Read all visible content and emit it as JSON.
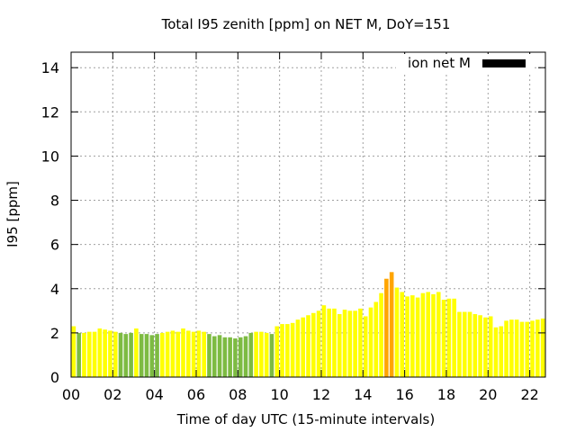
{
  "chart_data": {
    "type": "bar",
    "title": "Total I95 zenith [ppm] on NET M, DoY=151",
    "xlabel": "Time of day UTC (15-minute intervals)",
    "ylabel": "I95 [ppm]",
    "x_unit": "hours UTC",
    "x_interval_hours": 0.25,
    "xlim": [
      0,
      22.75
    ],
    "ylim": [
      0,
      14.7
    ],
    "x_ticks": [
      "00",
      "02",
      "04",
      "06",
      "08",
      "10",
      "12",
      "14",
      "16",
      "18",
      "20",
      "22"
    ],
    "y_ticks": [
      "0",
      "2",
      "4",
      "6",
      "8",
      "10",
      "12",
      "14"
    ],
    "grid": true,
    "legend": {
      "label": "ion net M",
      "color": "#000000",
      "position": "top-right"
    },
    "colors": {
      "yellow": "#ffff00",
      "green": "#7dbb42",
      "orange": "#ffa500"
    },
    "bars": [
      {
        "x": 0.0,
        "value": 2.3,
        "color": "yellow"
      },
      {
        "x": 0.25,
        "value": 2.0,
        "color": "green"
      },
      {
        "x": 0.5,
        "value": 2.0,
        "color": "yellow"
      },
      {
        "x": 0.75,
        "value": 2.05,
        "color": "yellow"
      },
      {
        "x": 1.0,
        "value": 2.05,
        "color": "yellow"
      },
      {
        "x": 1.25,
        "value": 2.2,
        "color": "yellow"
      },
      {
        "x": 1.5,
        "value": 2.15,
        "color": "yellow"
      },
      {
        "x": 1.75,
        "value": 2.1,
        "color": "yellow"
      },
      {
        "x": 2.0,
        "value": 2.05,
        "color": "yellow"
      },
      {
        "x": 2.25,
        "value": 2.0,
        "color": "green"
      },
      {
        "x": 2.5,
        "value": 1.95,
        "color": "green"
      },
      {
        "x": 2.75,
        "value": 2.0,
        "color": "green"
      },
      {
        "x": 3.0,
        "value": 2.2,
        "color": "yellow"
      },
      {
        "x": 3.25,
        "value": 1.95,
        "color": "green"
      },
      {
        "x": 3.5,
        "value": 1.95,
        "color": "green"
      },
      {
        "x": 3.75,
        "value": 1.9,
        "color": "green"
      },
      {
        "x": 4.0,
        "value": 1.95,
        "color": "green"
      },
      {
        "x": 4.25,
        "value": 2.0,
        "color": "yellow"
      },
      {
        "x": 4.5,
        "value": 2.05,
        "color": "yellow"
      },
      {
        "x": 4.75,
        "value": 2.1,
        "color": "yellow"
      },
      {
        "x": 5.0,
        "value": 2.05,
        "color": "yellow"
      },
      {
        "x": 5.25,
        "value": 2.2,
        "color": "yellow"
      },
      {
        "x": 5.5,
        "value": 2.1,
        "color": "yellow"
      },
      {
        "x": 5.75,
        "value": 2.05,
        "color": "yellow"
      },
      {
        "x": 6.0,
        "value": 2.1,
        "color": "yellow"
      },
      {
        "x": 6.25,
        "value": 2.05,
        "color": "yellow"
      },
      {
        "x": 6.5,
        "value": 1.95,
        "color": "green"
      },
      {
        "x": 6.75,
        "value": 1.85,
        "color": "green"
      },
      {
        "x": 7.0,
        "value": 1.9,
        "color": "green"
      },
      {
        "x": 7.25,
        "value": 1.8,
        "color": "green"
      },
      {
        "x": 7.5,
        "value": 1.8,
        "color": "green"
      },
      {
        "x": 7.75,
        "value": 1.75,
        "color": "green"
      },
      {
        "x": 8.0,
        "value": 1.8,
        "color": "green"
      },
      {
        "x": 8.25,
        "value": 1.85,
        "color": "green"
      },
      {
        "x": 8.5,
        "value": 2.0,
        "color": "green"
      },
      {
        "x": 8.75,
        "value": 2.05,
        "color": "yellow"
      },
      {
        "x": 9.0,
        "value": 2.05,
        "color": "yellow"
      },
      {
        "x": 9.25,
        "value": 2.0,
        "color": "yellow"
      },
      {
        "x": 9.5,
        "value": 1.95,
        "color": "green"
      },
      {
        "x": 9.75,
        "value": 2.3,
        "color": "yellow"
      },
      {
        "x": 10.0,
        "value": 2.4,
        "color": "yellow"
      },
      {
        "x": 10.25,
        "value": 2.4,
        "color": "yellow"
      },
      {
        "x": 10.5,
        "value": 2.45,
        "color": "yellow"
      },
      {
        "x": 10.75,
        "value": 2.6,
        "color": "yellow"
      },
      {
        "x": 11.0,
        "value": 2.7,
        "color": "yellow"
      },
      {
        "x": 11.25,
        "value": 2.8,
        "color": "yellow"
      },
      {
        "x": 11.5,
        "value": 2.9,
        "color": "yellow"
      },
      {
        "x": 11.75,
        "value": 3.0,
        "color": "yellow"
      },
      {
        "x": 12.0,
        "value": 3.25,
        "color": "yellow"
      },
      {
        "x": 12.25,
        "value": 3.1,
        "color": "yellow"
      },
      {
        "x": 12.5,
        "value": 3.1,
        "color": "yellow"
      },
      {
        "x": 12.75,
        "value": 2.85,
        "color": "yellow"
      },
      {
        "x": 13.0,
        "value": 3.05,
        "color": "yellow"
      },
      {
        "x": 13.25,
        "value": 3.0,
        "color": "yellow"
      },
      {
        "x": 13.5,
        "value": 3.0,
        "color": "yellow"
      },
      {
        "x": 13.75,
        "value": 3.1,
        "color": "yellow"
      },
      {
        "x": 14.0,
        "value": 2.75,
        "color": "yellow"
      },
      {
        "x": 14.25,
        "value": 3.15,
        "color": "yellow"
      },
      {
        "x": 14.5,
        "value": 3.4,
        "color": "yellow"
      },
      {
        "x": 14.75,
        "value": 3.8,
        "color": "yellow"
      },
      {
        "x": 15.0,
        "value": 4.45,
        "color": "orange"
      },
      {
        "x": 15.25,
        "value": 4.75,
        "color": "orange"
      },
      {
        "x": 15.5,
        "value": 4.05,
        "color": "yellow"
      },
      {
        "x": 15.75,
        "value": 3.85,
        "color": "yellow"
      },
      {
        "x": 16.0,
        "value": 3.65,
        "color": "yellow"
      },
      {
        "x": 16.25,
        "value": 3.7,
        "color": "yellow"
      },
      {
        "x": 16.5,
        "value": 3.6,
        "color": "yellow"
      },
      {
        "x": 16.75,
        "value": 3.8,
        "color": "yellow"
      },
      {
        "x": 17.0,
        "value": 3.85,
        "color": "yellow"
      },
      {
        "x": 17.25,
        "value": 3.75,
        "color": "yellow"
      },
      {
        "x": 17.5,
        "value": 3.85,
        "color": "yellow"
      },
      {
        "x": 17.75,
        "value": 3.5,
        "color": "yellow"
      },
      {
        "x": 18.0,
        "value": 3.55,
        "color": "yellow"
      },
      {
        "x": 18.25,
        "value": 3.55,
        "color": "yellow"
      },
      {
        "x": 18.5,
        "value": 2.95,
        "color": "yellow"
      },
      {
        "x": 18.75,
        "value": 2.95,
        "color": "yellow"
      },
      {
        "x": 19.0,
        "value": 2.95,
        "color": "yellow"
      },
      {
        "x": 19.25,
        "value": 2.85,
        "color": "yellow"
      },
      {
        "x": 19.5,
        "value": 2.8,
        "color": "yellow"
      },
      {
        "x": 19.75,
        "value": 2.7,
        "color": "yellow"
      },
      {
        "x": 20.0,
        "value": 2.75,
        "color": "yellow"
      },
      {
        "x": 20.25,
        "value": 2.25,
        "color": "yellow"
      },
      {
        "x": 20.5,
        "value": 2.3,
        "color": "yellow"
      },
      {
        "x": 20.75,
        "value": 2.55,
        "color": "yellow"
      },
      {
        "x": 21.0,
        "value": 2.6,
        "color": "yellow"
      },
      {
        "x": 21.25,
        "value": 2.6,
        "color": "yellow"
      },
      {
        "x": 21.5,
        "value": 2.5,
        "color": "yellow"
      },
      {
        "x": 21.75,
        "value": 2.5,
        "color": "yellow"
      },
      {
        "x": 22.0,
        "value": 2.55,
        "color": "yellow"
      },
      {
        "x": 22.25,
        "value": 2.6,
        "color": "yellow"
      },
      {
        "x": 22.5,
        "value": 2.65,
        "color": "yellow"
      }
    ]
  }
}
